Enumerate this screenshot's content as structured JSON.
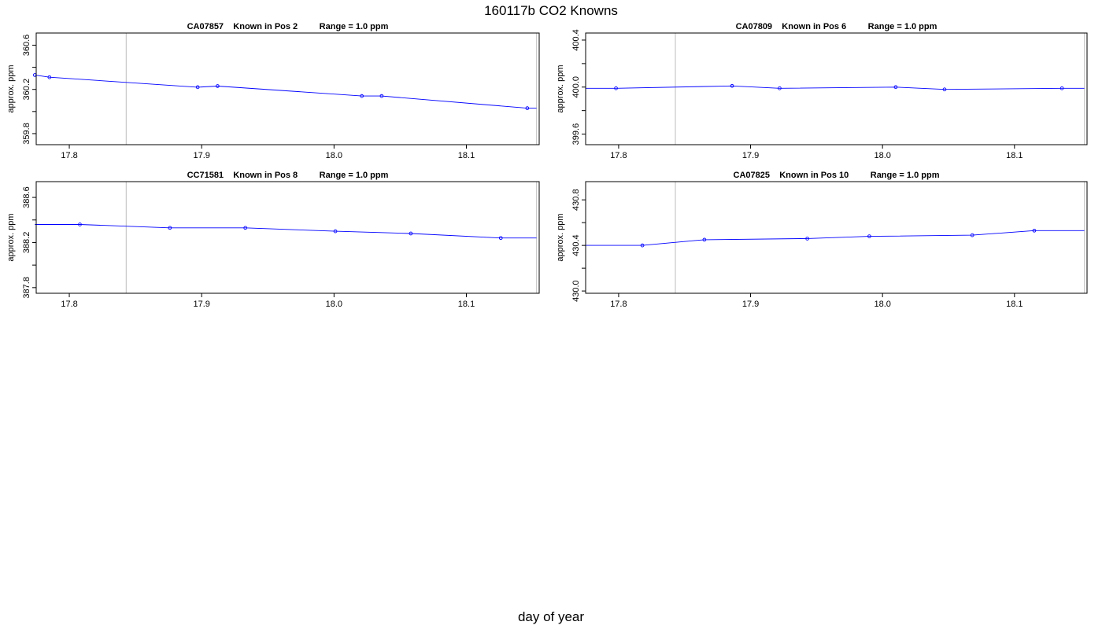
{
  "figure": {
    "title": "160117b   CO2 Knowns",
    "xlabel": "day of year"
  },
  "colors": {
    "series": "#0000ff",
    "marker_line": "#c8c8c8",
    "axis": "#000000"
  },
  "chart_data": [
    {
      "type": "line",
      "title": "CA07857    Known in Pos 2         Range = 1.0 ppm",
      "xlabel": "",
      "ylabel": "approx. ppm",
      "xlim": [
        17.775,
        18.155
      ],
      "ylim": [
        359.7,
        360.71
      ],
      "xticks": [
        "17.8",
        "17.9",
        "18.0",
        "18.1"
      ],
      "yticks": [
        "359.8",
        "360.2",
        "360.6"
      ],
      "vlines": [
        17.843,
        18.153
      ],
      "x": [
        17.774,
        17.785,
        17.897,
        17.912,
        18.021,
        18.036,
        18.146,
        18.153
      ],
      "y": [
        360.33,
        360.31,
        360.22,
        360.23,
        360.14,
        360.14,
        360.03,
        360.03
      ],
      "points": [
        0,
        1,
        2,
        3,
        4,
        5,
        6
      ]
    },
    {
      "type": "line",
      "title": "CA07809    Known in Pos 6         Range = 1.0 ppm",
      "xlabel": "",
      "ylabel": "approx. ppm",
      "xlim": [
        17.775,
        18.155
      ],
      "ylim": [
        399.51,
        400.46
      ],
      "xticks": [
        "17.8",
        "17.9",
        "18.0",
        "18.1"
      ],
      "yticks": [
        "399.6",
        "400.0",
        "400.4"
      ],
      "vlines": [
        17.843,
        18.153
      ],
      "x": [
        17.775,
        17.798,
        17.886,
        17.922,
        18.01,
        18.047,
        18.136,
        18.153
      ],
      "y": [
        399.99,
        399.99,
        400.01,
        399.99,
        400.0,
        399.98,
        399.99,
        399.99
      ],
      "points": [
        1,
        2,
        3,
        4,
        5,
        6
      ]
    },
    {
      "type": "line",
      "title": "CC71581    Known in Pos 8         Range = 1.0 ppm",
      "xlabel": "",
      "ylabel": "approx. ppm",
      "xlim": [
        17.775,
        18.155
      ],
      "ylim": [
        387.75,
        388.74
      ],
      "xticks": [
        "17.8",
        "17.9",
        "18.0",
        "18.1"
      ],
      "yticks": [
        "387.8",
        "388.2",
        "388.6"
      ],
      "vlines": [
        17.843,
        18.153
      ],
      "x": [
        17.774,
        17.808,
        17.876,
        17.933,
        18.001,
        18.058,
        18.126,
        18.153
      ],
      "y": [
        388.36,
        388.36,
        388.33,
        388.33,
        388.3,
        388.28,
        388.24,
        388.24
      ],
      "points": [
        1,
        2,
        3,
        4,
        5,
        6
      ]
    },
    {
      "type": "line",
      "title": "CA07825    Known in Pos 10         Range = 1.0 ppm",
      "xlabel": "",
      "ylabel": "approx. ppm",
      "xlim": [
        17.775,
        18.155
      ],
      "ylim": [
        429.98,
        430.96
      ],
      "xticks": [
        "17.8",
        "17.9",
        "18.0",
        "18.1"
      ],
      "yticks": [
        "430.0",
        "430.4",
        "430.8"
      ],
      "vlines": [
        17.843,
        18.153
      ],
      "x": [
        17.775,
        17.818,
        17.865,
        17.943,
        17.99,
        18.068,
        18.115,
        18.153
      ],
      "y": [
        430.4,
        430.4,
        430.45,
        430.46,
        430.48,
        430.49,
        430.53,
        430.53
      ],
      "points": [
        1,
        2,
        3,
        4,
        5,
        6
      ]
    }
  ]
}
